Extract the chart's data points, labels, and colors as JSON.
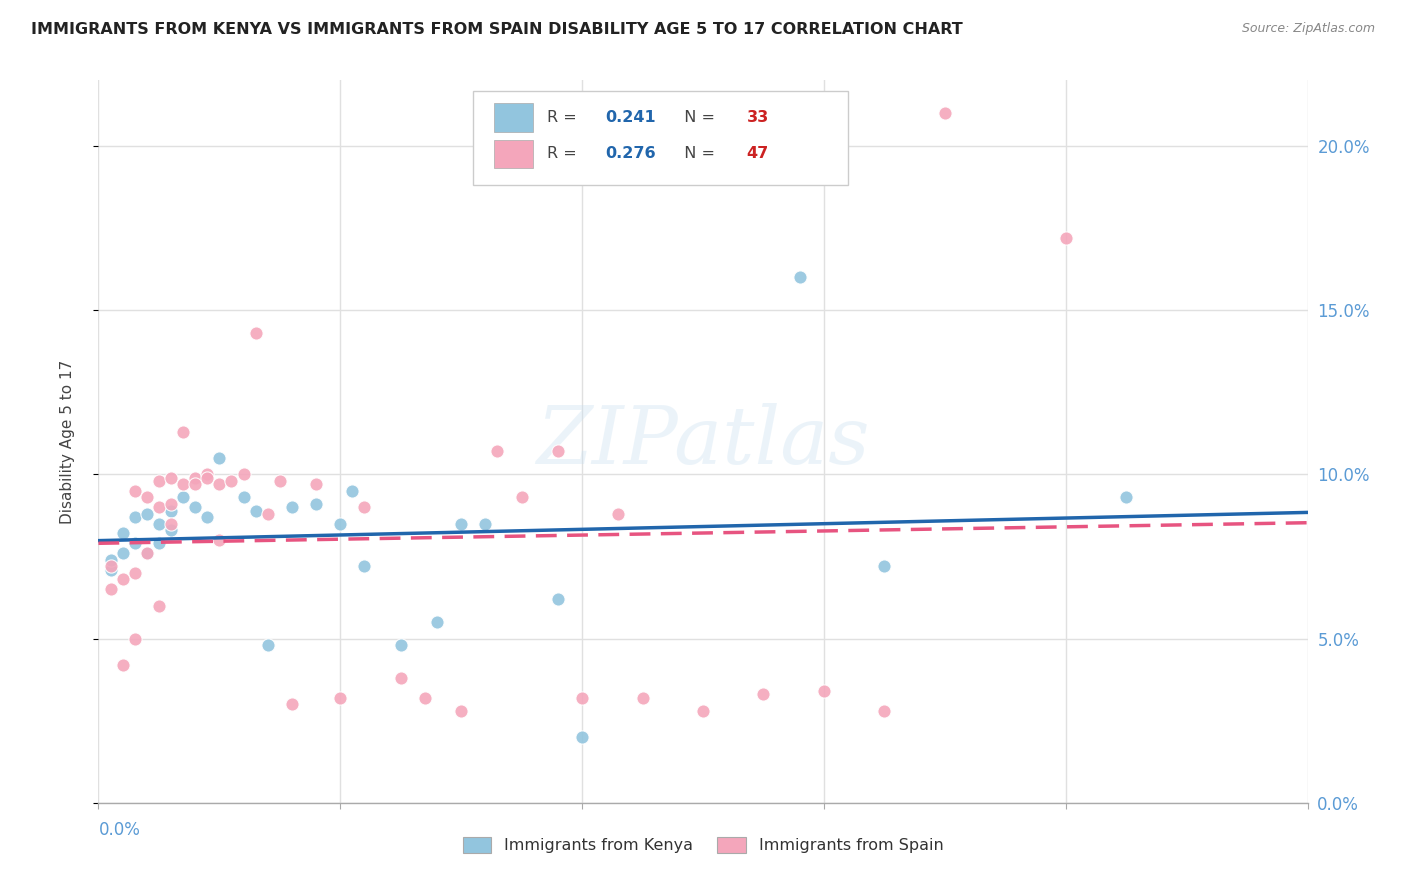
{
  "title": "IMMIGRANTS FROM KENYA VS IMMIGRANTS FROM SPAIN DISABILITY AGE 5 TO 17 CORRELATION CHART",
  "source": "Source: ZipAtlas.com",
  "ylabel": "Disability Age 5 to 17",
  "kenya_color": "#92c5de",
  "spain_color": "#f4a6bb",
  "kenya_line_color": "#2166ac",
  "spain_line_color": "#e75480",
  "background_color": "#ffffff",
  "grid_color": "#e0e0e0",
  "kenya_R": "0.241",
  "kenya_N": "33",
  "spain_R": "0.276",
  "spain_N": "47",
  "kenya_points_x": [
    0.001,
    0.001,
    0.002,
    0.002,
    0.003,
    0.003,
    0.004,
    0.004,
    0.005,
    0.005,
    0.006,
    0.006,
    0.007,
    0.008,
    0.009,
    0.01,
    0.012,
    0.013,
    0.014,
    0.016,
    0.018,
    0.02,
    0.021,
    0.022,
    0.025,
    0.028,
    0.03,
    0.032,
    0.038,
    0.04,
    0.058,
    0.065,
    0.085
  ],
  "kenya_points_y": [
    0.071,
    0.074,
    0.082,
    0.076,
    0.087,
    0.079,
    0.088,
    0.076,
    0.085,
    0.079,
    0.089,
    0.083,
    0.093,
    0.09,
    0.087,
    0.105,
    0.093,
    0.089,
    0.048,
    0.09,
    0.091,
    0.085,
    0.095,
    0.072,
    0.048,
    0.055,
    0.085,
    0.085,
    0.062,
    0.02,
    0.16,
    0.072,
    0.093
  ],
  "spain_points_x": [
    0.001,
    0.001,
    0.002,
    0.002,
    0.003,
    0.003,
    0.003,
    0.004,
    0.004,
    0.005,
    0.005,
    0.005,
    0.006,
    0.006,
    0.006,
    0.007,
    0.007,
    0.008,
    0.008,
    0.009,
    0.009,
    0.01,
    0.01,
    0.011,
    0.012,
    0.013,
    0.014,
    0.015,
    0.016,
    0.018,
    0.02,
    0.022,
    0.025,
    0.027,
    0.03,
    0.033,
    0.035,
    0.038,
    0.04,
    0.043,
    0.045,
    0.05,
    0.055,
    0.06,
    0.065,
    0.07,
    0.08
  ],
  "spain_points_y": [
    0.072,
    0.065,
    0.068,
    0.042,
    0.07,
    0.095,
    0.05,
    0.076,
    0.093,
    0.098,
    0.09,
    0.06,
    0.099,
    0.091,
    0.085,
    0.097,
    0.113,
    0.099,
    0.097,
    0.1,
    0.099,
    0.097,
    0.08,
    0.098,
    0.1,
    0.143,
    0.088,
    0.098,
    0.03,
    0.097,
    0.032,
    0.09,
    0.038,
    0.032,
    0.028,
    0.107,
    0.093,
    0.107,
    0.032,
    0.088,
    0.032,
    0.028,
    0.033,
    0.034,
    0.028,
    0.21,
    0.172
  ],
  "xlim": [
    0.0,
    0.1
  ],
  "ylim": [
    0.0,
    0.22
  ],
  "yticks": [
    0.0,
    0.05,
    0.1,
    0.15,
    0.2
  ],
  "ytick_labels": [
    "0.0%",
    "5.0%",
    "10.0%",
    "15.0%",
    "20.0%"
  ],
  "xticks": [
    0.0,
    0.02,
    0.04,
    0.06,
    0.08,
    0.1
  ],
  "xtick_labels": [
    "",
    "",
    "",
    "",
    "",
    ""
  ]
}
